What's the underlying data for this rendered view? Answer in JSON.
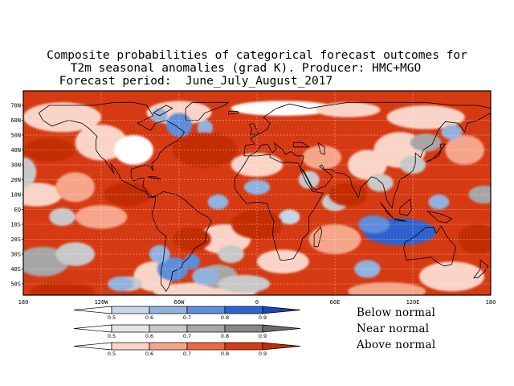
{
  "title": {
    "line1": "Composite probabilities of categorical forecast outcomes for",
    "line2": "T2m seasonal anomalies (grad K). Producer: HMC+MGO",
    "line3": "Forecast period:  June_July_August_2017"
  },
  "map": {
    "lat_labels": [
      "70N",
      "60N",
      "50N",
      "40N",
      "30N",
      "20N",
      "10N",
      "EQ",
      "10S",
      "20S",
      "30S",
      "40S",
      "50S"
    ],
    "lon_labels": [
      "180",
      "120W",
      "60W",
      "0",
      "60E",
      "120E",
      "180"
    ],
    "colors": {
      "above": [
        "#ffffff",
        "#f9d4c6",
        "#f4a58a",
        "#ec6a42",
        "#d63a12",
        "#c22d00"
      ],
      "near": [
        "#ffffff",
        "#e4e4e4",
        "#c8c8c8",
        "#a6a6a6",
        "#888888",
        "#6a6a6a"
      ],
      "below": [
        "#ffffff",
        "#c6d6e8",
        "#92b2de",
        "#5d8ddb",
        "#2f63cf",
        "#1a44b8"
      ]
    }
  },
  "legend": {
    "ticks": [
      "0.5",
      "0.6",
      "0.7",
      "0.8",
      "0.9"
    ],
    "below_label": "Below normal",
    "near_label": "Near normal",
    "above_label": "Above normal"
  }
}
